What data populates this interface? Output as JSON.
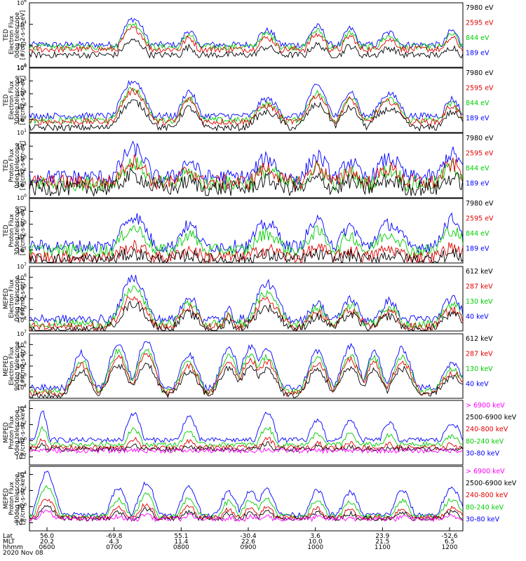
{
  "chart_data": [
    {
      "type": "line",
      "panel": "TED 0deg electron",
      "ylabel": [
        "TED",
        "Electron Flux",
        "0deg telescope",
        "[#/cm2-s-str-eV]"
      ],
      "ylim_log": [
        0,
        6
      ],
      "ticks": [
        {
          "e": 0,
          "t": "10"
        },
        {
          "e": 2,
          "t": "10"
        },
        {
          "e": 4,
          "t": "10"
        },
        {
          "e": 6,
          "t": "10"
        }
      ],
      "legend": [
        {
          "label": "7980 eV",
          "color": "#000000"
        },
        {
          "label": "2595 eV",
          "color": "#e00000"
        },
        {
          "label": "844 eV",
          "color": "#00cc00"
        },
        {
          "label": "189 eV",
          "color": "#0000ff"
        }
      ],
      "bg": 2.1,
      "noise": 0.3,
      "events": [
        [
          0.24,
          0.044,
          4.5
        ],
        [
          0.368,
          0.03,
          3.4
        ],
        [
          0.548,
          0.044,
          3.4
        ],
        [
          0.664,
          0.036,
          3.8
        ],
        [
          0.74,
          0.03,
          3.6
        ],
        [
          0.83,
          0.044,
          3.2
        ],
        [
          0.975,
          0.03,
          3.4
        ]
      ],
      "series_levels": {
        "blue": 1.0,
        "green": 0.9,
        "red": 0.8,
        "black": 0.55
      }
    },
    {
      "type": "line",
      "panel": "TED 30deg electron",
      "ylabel": [
        "TED",
        "Electron Flux",
        "30deg telescope",
        "[#/cm2-s-str-eV]"
      ],
      "ylim_log": [
        1,
        6
      ],
      "ticks": [
        {
          "e": 1,
          "t": "10"
        },
        {
          "e": 2,
          "t": "10"
        },
        {
          "e": 3,
          "t": "10"
        },
        {
          "e": 4,
          "t": "10"
        },
        {
          "e": 5,
          "t": "10"
        },
        {
          "e": 6,
          "t": "10"
        }
      ],
      "legend": [
        {
          "label": "7980 eV",
          "color": "#000000"
        },
        {
          "label": "2595 eV",
          "color": "#e00000"
        },
        {
          "label": "844 eV",
          "color": "#00cc00"
        },
        {
          "label": "189 eV",
          "color": "#0000ff"
        }
      ],
      "bg": 2.3,
      "noise": 0.25,
      "events": [
        [
          0.24,
          0.044,
          5.0
        ],
        [
          0.368,
          0.03,
          4.2
        ],
        [
          0.548,
          0.044,
          3.6
        ],
        [
          0.664,
          0.036,
          4.6
        ],
        [
          0.74,
          0.03,
          4.2
        ],
        [
          0.83,
          0.044,
          4.0
        ],
        [
          0.975,
          0.03,
          3.6
        ]
      ],
      "series_levels": {
        "blue": 1.0,
        "green": 0.85,
        "red": 0.8,
        "black": 0.6
      }
    },
    {
      "type": "line",
      "panel": "TED 0deg proton",
      "ylabel": [
        "TED",
        "Proton Flux",
        "0deg telescope",
        "[#/cm2-s-str-eV]"
      ],
      "ylim_log": [
        0,
        5
      ],
      "ticks": [
        {
          "e": 0,
          "t": "10"
        },
        {
          "e": 1,
          "t": "10"
        },
        {
          "e": 2,
          "t": "10"
        },
        {
          "e": 3,
          "t": "10"
        },
        {
          "e": 4,
          "t": "10"
        }
      ],
      "legend": [
        {
          "label": "7980 eV",
          "color": "#000000"
        },
        {
          "label": "2595 eV",
          "color": "#e00000"
        },
        {
          "label": "844 eV",
          "color": "#00cc00"
        },
        {
          "label": "189 eV",
          "color": "#0000ff"
        }
      ],
      "bg": 1.6,
      "noise": 0.6,
      "events": [
        [
          0.24,
          0.05,
          3.8
        ],
        [
          0.368,
          0.04,
          2.8
        ],
        [
          0.548,
          0.05,
          3.0
        ],
        [
          0.664,
          0.04,
          3.2
        ],
        [
          0.74,
          0.035,
          2.8
        ],
        [
          0.83,
          0.05,
          3.0
        ],
        [
          0.975,
          0.04,
          3.4
        ]
      ],
      "series_levels": {
        "blue": 1.0,
        "green": 0.7,
        "red": 0.75,
        "black": 0.45
      }
    },
    {
      "type": "line",
      "panel": "TED 30deg proton",
      "ylabel": [
        "TED",
        "Proton Flux",
        "30deg telescope",
        "[#/cm2-s-str-eV]"
      ],
      "ylim_log": [
        0,
        5
      ],
      "ticks": [
        {
          "e": 1,
          "t": "10"
        },
        {
          "e": 2,
          "t": "10"
        },
        {
          "e": 3,
          "t": "10"
        },
        {
          "e": 4,
          "t": "10"
        }
      ],
      "legend": [
        {
          "label": "7980 eV",
          "color": "#000000"
        },
        {
          "label": "2595 eV",
          "color": "#e00000"
        },
        {
          "label": "844 eV",
          "color": "#00cc00"
        },
        {
          "label": "189 eV",
          "color": "#0000ff"
        }
      ],
      "bg": 1.3,
      "noise": 0.5,
      "events": [
        [
          0.24,
          0.05,
          3.6
        ],
        [
          0.368,
          0.04,
          2.9
        ],
        [
          0.548,
          0.05,
          3.0
        ],
        [
          0.664,
          0.04,
          3.2
        ],
        [
          0.74,
          0.035,
          2.8
        ],
        [
          0.83,
          0.05,
          3.0
        ],
        [
          0.975,
          0.04,
          3.4
        ]
      ],
      "series_levels": {
        "blue": 1.0,
        "green": 0.75,
        "red": 0.35,
        "black": 0.2
      }
    },
    {
      "type": "line",
      "panel": "MEPED 0deg electron",
      "ylabel": [
        "MEPED",
        "Electron Flux",
        "0deg telescope",
        "[#/cm2-s-str]"
      ],
      "ylim_log": [
        1,
        7
      ],
      "ticks": [
        {
          "e": 2,
          "t": "10"
        },
        {
          "e": 3,
          "t": "10"
        },
        {
          "e": 4,
          "t": "10"
        },
        {
          "e": 5,
          "t": "10"
        },
        {
          "e": 6,
          "t": "10"
        },
        {
          "e": 7,
          "t": "10"
        }
      ],
      "legend": [
        {
          "label": "612 keV",
          "color": "#000000"
        },
        {
          "label": "287 keV",
          "color": "#e00000"
        },
        {
          "label": "130 keV",
          "color": "#00cc00"
        },
        {
          "label": "40 keV",
          "color": "#0000ff"
        }
      ],
      "bg": 2.1,
      "noise": 0.4,
      "events": [
        [
          0.24,
          0.04,
          6.0
        ],
        [
          0.368,
          0.03,
          4.2
        ],
        [
          0.46,
          0.015,
          3.0
        ],
        [
          0.548,
          0.04,
          5.4
        ],
        [
          0.664,
          0.03,
          3.6
        ],
        [
          0.74,
          0.03,
          4.0
        ],
        [
          0.83,
          0.03,
          3.8
        ],
        [
          0.975,
          0.035,
          4.0
        ]
      ],
      "series_levels": {
        "blue": 1.0,
        "green": 0.8,
        "red": 0.65,
        "black": 0.5
      }
    },
    {
      "type": "line",
      "panel": "MEPED 90deg electron",
      "ylabel": [
        "MEPED",
        "Electron Flux",
        "90deg telescope",
        "[#/cm2-s-str]"
      ],
      "ylim_log": [
        1,
        7
      ],
      "ticks": [
        {
          "e": 2,
          "t": "10"
        },
        {
          "e": 3,
          "t": "10"
        },
        {
          "e": 4,
          "t": "10"
        },
        {
          "e": 5,
          "t": "10"
        },
        {
          "e": 6,
          "t": "10"
        },
        {
          "e": 7,
          "t": "10"
        }
      ],
      "legend": [
        {
          "label": "612 keV",
          "color": "#000000"
        },
        {
          "label": "287 keV",
          "color": "#e00000"
        },
        {
          "label": "130 keV",
          "color": "#00cc00"
        },
        {
          "label": "40 keV",
          "color": "#0000ff"
        }
      ],
      "bg": 2.0,
      "noise": 0.3,
      "events": [
        [
          0.12,
          0.03,
          5.2
        ],
        [
          0.205,
          0.03,
          6.2
        ],
        [
          0.27,
          0.03,
          6.4
        ],
        [
          0.368,
          0.03,
          5.0
        ],
        [
          0.46,
          0.03,
          5.6
        ],
        [
          0.51,
          0.03,
          5.8
        ],
        [
          0.548,
          0.03,
          5.6
        ],
        [
          0.664,
          0.03,
          5.4
        ],
        [
          0.74,
          0.03,
          5.8
        ],
        [
          0.795,
          0.025,
          5.4
        ],
        [
          0.86,
          0.03,
          5.6
        ],
        [
          0.975,
          0.035,
          4.2
        ]
      ],
      "series_levels": {
        "blue": 1.0,
        "green": 0.85,
        "red": 0.75,
        "black": 0.6
      }
    },
    {
      "type": "line",
      "panel": "MEPED 0deg proton",
      "ylabel": [
        "MEPED",
        "Proton Flux",
        "0deg telescope",
        "[#/cm2-s-str-keV]"
      ],
      "ylim_log": [
        -3,
        5
      ],
      "ticks": [
        {
          "e": -2,
          "t": "10"
        },
        {
          "e": 0,
          "t": "10"
        },
        {
          "e": 2,
          "t": "10"
        },
        {
          "e": 4,
          "t": "10"
        }
      ],
      "legend": [
        {
          "label": "> 6900 keV",
          "color": "#ff00ff"
        },
        {
          "label": "2500-6900 keV",
          "color": "#000000"
        },
        {
          "label": "240-800 keV",
          "color": "#e00000"
        },
        {
          "label": "80-240 keV",
          "color": "#00cc00"
        },
        {
          "label": "30-80 keV",
          "color": "#0000ff"
        }
      ],
      "bg": 0.1,
      "noise": 0.3,
      "events": [
        [
          0.03,
          0.02,
          3.5
        ],
        [
          0.24,
          0.03,
          3.4
        ],
        [
          0.368,
          0.03,
          3.0
        ],
        [
          0.548,
          0.03,
          3.6
        ],
        [
          0.664,
          0.03,
          2.6
        ],
        [
          0.74,
          0.03,
          2.6
        ],
        [
          0.83,
          0.03,
          2.2
        ],
        [
          0.975,
          0.035,
          2.2
        ]
      ],
      "series_levels": {
        "blue": 1.0,
        "green": 0.7,
        "red": 0.5,
        "black": 0.4,
        "magenta": 0.3
      }
    },
    {
      "type": "line",
      "panel": "MEPED 90deg proton",
      "ylabel": [
        "MEPED",
        "Proton Flux",
        "90deg telescope",
        "[#/cm2-s-str-keV]"
      ],
      "ylim_log": [
        -3,
        5
      ],
      "ticks": [
        {
          "e": -2,
          "t": "10"
        },
        {
          "e": 0,
          "t": "10"
        },
        {
          "e": 2,
          "t": "10"
        },
        {
          "e": 4,
          "t": "10"
        }
      ],
      "legend": [
        {
          "label": "> 6900 keV",
          "color": "#ff00ff"
        },
        {
          "label": "2500-6900 keV",
          "color": "#000000"
        },
        {
          "label": "240-800 keV",
          "color": "#e00000"
        },
        {
          "label": "80-240 keV",
          "color": "#00cc00"
        },
        {
          "label": "30-80 keV",
          "color": "#0000ff"
        }
      ],
      "bg": -1.0,
      "noise": 0.3,
      "events": [
        [
          0.04,
          0.03,
          4.2
        ],
        [
          0.205,
          0.03,
          2.2
        ],
        [
          0.27,
          0.03,
          3.0
        ],
        [
          0.368,
          0.03,
          2.4
        ],
        [
          0.46,
          0.03,
          1.8
        ],
        [
          0.51,
          0.03,
          2.0
        ],
        [
          0.548,
          0.03,
          2.2
        ],
        [
          0.664,
          0.03,
          2.0
        ],
        [
          0.74,
          0.03,
          1.8
        ],
        [
          0.86,
          0.03,
          2.0
        ],
        [
          0.975,
          0.035,
          2.2
        ]
      ],
      "series_levels": {
        "blue": 1.0,
        "green": 0.75,
        "red": 0.55,
        "black": 0.45,
        "magenta": 0.35
      }
    }
  ],
  "axis": {
    "row_labels": [
      "Lat",
      "MLT",
      "hhmm"
    ],
    "lat": [
      "56.0",
      "-69.8",
      "55.1",
      "-30.4",
      "3.6",
      "23.9",
      "-52.6"
    ],
    "mlt": [
      "20.2",
      "4.3",
      "11.4",
      "22.6",
      "10.0",
      "21.5",
      "6.5"
    ],
    "hhmm": [
      "0600",
      "0700",
      "0800",
      "0900",
      "1000",
      "1100",
      "1200"
    ],
    "date": "2020 Nov 08"
  }
}
